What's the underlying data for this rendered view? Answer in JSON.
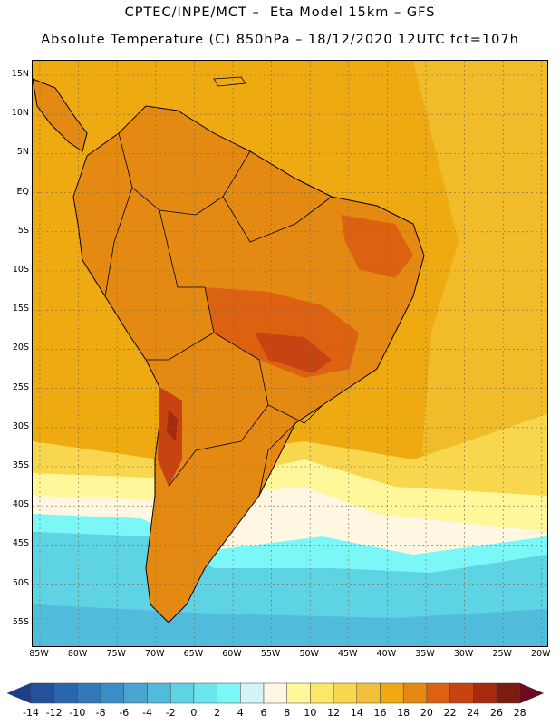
{
  "title": {
    "line1": "CPTEC/INPE/MCT –  Eta Model 15km – GFS",
    "line2": "Absolute Temperature (C) 850hPa – 18/12/2020 12UTC fct=107h"
  },
  "axes": {
    "lat_labels": [
      "15N",
      "10N",
      "5N",
      "EQ",
      "5S",
      "10S",
      "15S",
      "20S",
      "25S",
      "30S",
      "35S",
      "40S",
      "45S",
      "50S",
      "55S"
    ],
    "lon_labels": [
      "85W",
      "80W",
      "75W",
      "70W",
      "65W",
      "60W",
      "55W",
      "50W",
      "45W",
      "40W",
      "35W",
      "30W",
      "25W",
      "20W"
    ]
  },
  "legend": {
    "unit": "C",
    "labels": [
      "-14",
      "-12",
      "-10",
      "-8",
      "-6",
      "-4",
      "-2",
      "0",
      "2",
      "4",
      "6",
      "8",
      "10",
      "12",
      "14",
      "16",
      "18",
      "20",
      "22",
      "24",
      "26",
      "28"
    ],
    "colors": [
      "#1d3e8e",
      "#23519c",
      "#2a66ab",
      "#3179b8",
      "#3b8ec5",
      "#48a5d2",
      "#52bcdc",
      "#5dd3e4",
      "#69e6ee",
      "#7cf7f7",
      "#d4f4f8",
      "#fff7e2",
      "#fff79a",
      "#fbe86a",
      "#f8d64d",
      "#f2c03a",
      "#eeaa10",
      "#e48a12",
      "#dc6212",
      "#c74412",
      "#a52a10",
      "#7a1c10",
      "#6b0a20"
    ]
  },
  "map": {
    "fields": [
      {
        "color_name": "ocean-warm",
        "color": "#eeaa10"
      },
      {
        "color_name": "land-hot",
        "color": "#dc6212"
      },
      {
        "color_name": "south-cold",
        "color": "#52bcdc"
      }
    ]
  }
}
